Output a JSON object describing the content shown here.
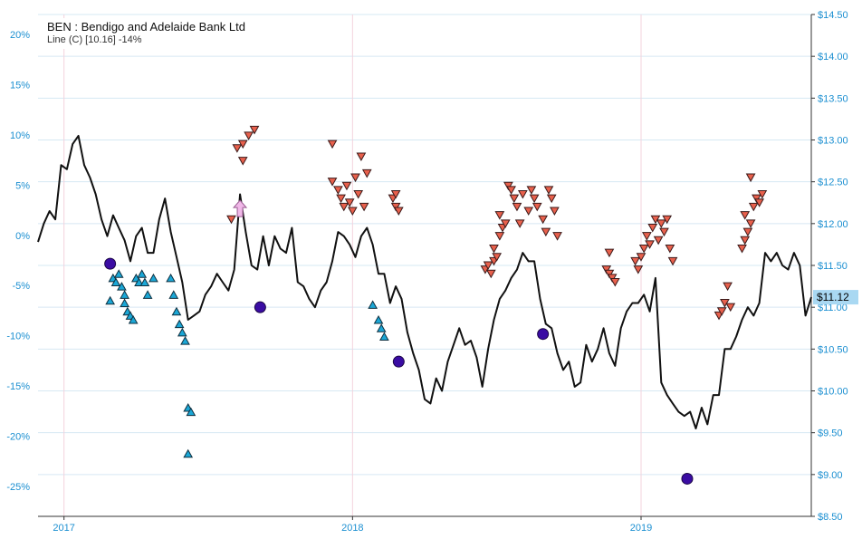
{
  "chart_data": {
    "type": "line",
    "title": "BEN : Bendigo and Adelaide Bank Ltd",
    "subtitle": "Line (C) [10.16] -14%",
    "left_axis": {
      "ticks": [
        "20%",
        "15%",
        "10%",
        "5%",
        "0%",
        "-5%",
        "-10%",
        "-15%",
        "-20%",
        "-25%"
      ],
      "range": [
        -28,
        22
      ]
    },
    "right_axis": {
      "ticks": [
        "$14.50",
        "$14.00",
        "$13.50",
        "$13.00",
        "$12.50",
        "$12.00",
        "$11.50",
        "$11.00",
        "$10.50",
        "$10.00",
        "$9.50",
        "$9.00",
        "$8.50"
      ],
      "range": [
        8.5,
        14.5
      ]
    },
    "x_axis": {
      "ticks": [
        "2017",
        "2018",
        "2019"
      ],
      "tick_dates": [
        2017.0,
        2018.0,
        2019.0
      ],
      "range": [
        2016.91,
        2019.59
      ]
    },
    "last_price_label": "$11.12",
    "grid": true,
    "series": [
      {
        "type": "line",
        "color": "#111111",
        "points": [
          [
            2016.91,
            11.78
          ],
          [
            2016.93,
            12.0
          ],
          [
            2016.95,
            12.15
          ],
          [
            2016.97,
            12.05
          ],
          [
            2016.99,
            12.7
          ],
          [
            2017.01,
            12.65
          ],
          [
            2017.03,
            12.95
          ],
          [
            2017.05,
            13.05
          ],
          [
            2017.07,
            12.7
          ],
          [
            2017.09,
            12.55
          ],
          [
            2017.11,
            12.35
          ],
          [
            2017.13,
            12.05
          ],
          [
            2017.15,
            11.85
          ],
          [
            2017.17,
            12.1
          ],
          [
            2017.19,
            11.95
          ],
          [
            2017.21,
            11.8
          ],
          [
            2017.23,
            11.55
          ],
          [
            2017.25,
            11.85
          ],
          [
            2017.27,
            11.95
          ],
          [
            2017.29,
            11.65
          ],
          [
            2017.31,
            11.65
          ],
          [
            2017.33,
            12.05
          ],
          [
            2017.35,
            12.3
          ],
          [
            2017.37,
            11.9
          ],
          [
            2017.39,
            11.6
          ],
          [
            2017.41,
            11.3
          ],
          [
            2017.43,
            10.85
          ],
          [
            2017.45,
            10.9
          ],
          [
            2017.47,
            10.95
          ],
          [
            2017.49,
            11.15
          ],
          [
            2017.51,
            11.25
          ],
          [
            2017.53,
            11.4
          ],
          [
            2017.55,
            11.3
          ],
          [
            2017.57,
            11.2
          ],
          [
            2017.59,
            11.45
          ],
          [
            2017.61,
            12.35
          ],
          [
            2017.63,
            11.9
          ],
          [
            2017.65,
            11.5
          ],
          [
            2017.67,
            11.45
          ],
          [
            2017.69,
            11.85
          ],
          [
            2017.71,
            11.5
          ],
          [
            2017.73,
            11.85
          ],
          [
            2017.75,
            11.7
          ],
          [
            2017.77,
            11.65
          ],
          [
            2017.79,
            11.95
          ],
          [
            2017.81,
            11.3
          ],
          [
            2017.83,
            11.25
          ],
          [
            2017.85,
            11.1
          ],
          [
            2017.87,
            11.0
          ],
          [
            2017.89,
            11.2
          ],
          [
            2017.91,
            11.3
          ],
          [
            2017.93,
            11.55
          ],
          [
            2017.95,
            11.9
          ],
          [
            2017.97,
            11.85
          ],
          [
            2017.99,
            11.75
          ],
          [
            2018.01,
            11.6
          ],
          [
            2018.03,
            11.85
          ],
          [
            2018.05,
            11.95
          ],
          [
            2018.07,
            11.75
          ],
          [
            2018.09,
            11.4
          ],
          [
            2018.11,
            11.4
          ],
          [
            2018.13,
            11.05
          ],
          [
            2018.15,
            11.25
          ],
          [
            2018.17,
            11.1
          ],
          [
            2018.19,
            10.7
          ],
          [
            2018.21,
            10.45
          ],
          [
            2018.23,
            10.25
          ],
          [
            2018.25,
            9.9
          ],
          [
            2018.27,
            9.85
          ],
          [
            2018.29,
            10.15
          ],
          [
            2018.31,
            10.0
          ],
          [
            2018.33,
            10.35
          ],
          [
            2018.35,
            10.55
          ],
          [
            2018.37,
            10.75
          ],
          [
            2018.39,
            10.55
          ],
          [
            2018.41,
            10.6
          ],
          [
            2018.43,
            10.4
          ],
          [
            2018.45,
            10.05
          ],
          [
            2018.47,
            10.5
          ],
          [
            2018.49,
            10.85
          ],
          [
            2018.51,
            11.1
          ],
          [
            2018.53,
            11.2
          ],
          [
            2018.55,
            11.35
          ],
          [
            2018.57,
            11.45
          ],
          [
            2018.59,
            11.65
          ],
          [
            2018.61,
            11.55
          ],
          [
            2018.63,
            11.55
          ],
          [
            2018.65,
            11.1
          ],
          [
            2018.67,
            10.8
          ],
          [
            2018.69,
            10.75
          ],
          [
            2018.71,
            10.45
          ],
          [
            2018.73,
            10.25
          ],
          [
            2018.75,
            10.35
          ],
          [
            2018.77,
            10.05
          ],
          [
            2018.79,
            10.1
          ],
          [
            2018.81,
            10.55
          ],
          [
            2018.83,
            10.35
          ],
          [
            2018.85,
            10.5
          ],
          [
            2018.87,
            10.75
          ],
          [
            2018.89,
            10.45
          ],
          [
            2018.91,
            10.3
          ],
          [
            2018.93,
            10.75
          ],
          [
            2018.95,
            10.95
          ],
          [
            2018.97,
            11.05
          ],
          [
            2018.99,
            11.05
          ],
          [
            2019.01,
            11.15
          ],
          [
            2019.03,
            10.95
          ],
          [
            2019.05,
            11.35
          ],
          [
            2019.07,
            10.1
          ],
          [
            2019.09,
            9.95
          ],
          [
            2019.11,
            9.85
          ],
          [
            2019.13,
            9.75
          ],
          [
            2019.15,
            9.7
          ],
          [
            2019.17,
            9.75
          ],
          [
            2019.19,
            9.55
          ],
          [
            2019.21,
            9.8
          ],
          [
            2019.23,
            9.6
          ],
          [
            2019.25,
            9.95
          ],
          [
            2019.27,
            9.95
          ],
          [
            2019.29,
            10.5
          ],
          [
            2019.31,
            10.5
          ],
          [
            2019.33,
            10.65
          ],
          [
            2019.35,
            10.85
          ],
          [
            2019.37,
            11.0
          ],
          [
            2019.39,
            10.9
          ],
          [
            2019.41,
            11.05
          ],
          [
            2019.43,
            11.65
          ],
          [
            2019.45,
            11.55
          ],
          [
            2019.47,
            11.65
          ],
          [
            2019.49,
            11.5
          ],
          [
            2019.51,
            11.45
          ],
          [
            2019.53,
            11.65
          ],
          [
            2019.55,
            11.5
          ],
          [
            2019.57,
            10.9
          ],
          [
            2019.59,
            11.12
          ]
        ]
      },
      {
        "type": "scatter",
        "marker": "triangle-down",
        "color": "#e8604c",
        "points": [
          [
            2017.58,
            12.05
          ],
          [
            2017.6,
            12.9
          ],
          [
            2017.62,
            12.95
          ],
          [
            2017.64,
            13.05
          ],
          [
            2017.66,
            13.12
          ],
          [
            2017.62,
            12.75
          ],
          [
            2017.93,
            12.95
          ],
          [
            2017.93,
            12.5
          ],
          [
            2017.95,
            12.4
          ],
          [
            2017.96,
            12.3
          ],
          [
            2017.97,
            12.2
          ],
          [
            2017.98,
            12.45
          ],
          [
            2017.99,
            12.25
          ],
          [
            2018.0,
            12.15
          ],
          [
            2018.01,
            12.55
          ],
          [
            2018.02,
            12.35
          ],
          [
            2018.03,
            12.8
          ],
          [
            2018.04,
            12.2
          ],
          [
            2018.05,
            12.6
          ],
          [
            2018.14,
            12.3
          ],
          [
            2018.15,
            12.2
          ],
          [
            2018.16,
            12.15
          ],
          [
            2018.15,
            12.35
          ],
          [
            2018.46,
            11.45
          ],
          [
            2018.47,
            11.5
          ],
          [
            2018.48,
            11.4
          ],
          [
            2018.49,
            11.55
          ],
          [
            2018.5,
            11.6
          ],
          [
            2018.49,
            11.7
          ],
          [
            2018.51,
            11.85
          ],
          [
            2018.52,
            11.95
          ],
          [
            2018.53,
            12.0
          ],
          [
            2018.51,
            12.1
          ],
          [
            2018.54,
            12.45
          ],
          [
            2018.55,
            12.4
          ],
          [
            2018.56,
            12.3
          ],
          [
            2018.57,
            12.2
          ],
          [
            2018.58,
            12.0
          ],
          [
            2018.59,
            12.35
          ],
          [
            2018.61,
            12.15
          ],
          [
            2018.62,
            12.4
          ],
          [
            2018.63,
            12.3
          ],
          [
            2018.64,
            12.2
          ],
          [
            2018.66,
            12.05
          ],
          [
            2018.67,
            11.9
          ],
          [
            2018.68,
            12.4
          ],
          [
            2018.69,
            12.3
          ],
          [
            2018.7,
            12.15
          ],
          [
            2018.71,
            11.85
          ],
          [
            2018.88,
            11.45
          ],
          [
            2018.89,
            11.4
          ],
          [
            2018.9,
            11.35
          ],
          [
            2018.91,
            11.3
          ],
          [
            2018.89,
            11.65
          ],
          [
            2018.98,
            11.55
          ],
          [
            2018.99,
            11.45
          ],
          [
            2019.0,
            11.6
          ],
          [
            2019.01,
            11.7
          ],
          [
            2019.02,
            11.85
          ],
          [
            2019.03,
            11.75
          ],
          [
            2019.04,
            11.95
          ],
          [
            2019.05,
            12.05
          ],
          [
            2019.06,
            11.8
          ],
          [
            2019.07,
            12.0
          ],
          [
            2019.08,
            11.9
          ],
          [
            2019.09,
            12.05
          ],
          [
            2019.1,
            11.7
          ],
          [
            2019.11,
            11.55
          ],
          [
            2019.27,
            10.9
          ],
          [
            2019.28,
            10.95
          ],
          [
            2019.29,
            11.05
          ],
          [
            2019.3,
            11.25
          ],
          [
            2019.31,
            11.0
          ],
          [
            2019.35,
            11.7
          ],
          [
            2019.36,
            11.8
          ],
          [
            2019.37,
            11.9
          ],
          [
            2019.38,
            12.0
          ],
          [
            2019.39,
            12.2
          ],
          [
            2019.4,
            12.3
          ],
          [
            2019.41,
            12.25
          ],
          [
            2019.42,
            12.35
          ],
          [
            2019.38,
            12.55
          ],
          [
            2019.36,
            12.1
          ]
        ]
      },
      {
        "type": "scatter",
        "marker": "triangle-up",
        "color": "#1ba7d6",
        "points": [
          [
            2017.16,
            11.08
          ],
          [
            2017.17,
            11.35
          ],
          [
            2017.18,
            11.3
          ],
          [
            2017.19,
            11.4
          ],
          [
            2017.2,
            11.25
          ],
          [
            2017.21,
            11.15
          ],
          [
            2017.21,
            11.05
          ],
          [
            2017.22,
            10.95
          ],
          [
            2017.23,
            10.9
          ],
          [
            2017.24,
            10.85
          ],
          [
            2017.25,
            11.35
          ],
          [
            2017.26,
            11.3
          ],
          [
            2017.27,
            11.4
          ],
          [
            2017.28,
            11.3
          ],
          [
            2017.29,
            11.15
          ],
          [
            2017.31,
            11.35
          ],
          [
            2017.37,
            11.35
          ],
          [
            2017.38,
            11.15
          ],
          [
            2017.39,
            10.95
          ],
          [
            2017.4,
            10.8
          ],
          [
            2017.41,
            10.7
          ],
          [
            2017.42,
            10.6
          ],
          [
            2017.43,
            9.8
          ],
          [
            2017.44,
            9.75
          ],
          [
            2017.43,
            9.25
          ],
          [
            2018.07,
            11.03
          ],
          [
            2018.09,
            10.85
          ],
          [
            2018.1,
            10.75
          ],
          [
            2018.11,
            10.65
          ]
        ]
      },
      {
        "type": "scatter",
        "marker": "circle",
        "color": "#3a0ca3",
        "points": [
          [
            2017.16,
            11.52
          ],
          [
            2017.68,
            11.0
          ],
          [
            2018.16,
            10.35
          ],
          [
            2018.66,
            10.68
          ],
          [
            2019.16,
            8.95
          ]
        ]
      },
      {
        "type": "scatter",
        "marker": "arrow-up",
        "color": "#f0b8e8",
        "points": [
          [
            2017.61,
            12.17
          ]
        ]
      }
    ]
  }
}
